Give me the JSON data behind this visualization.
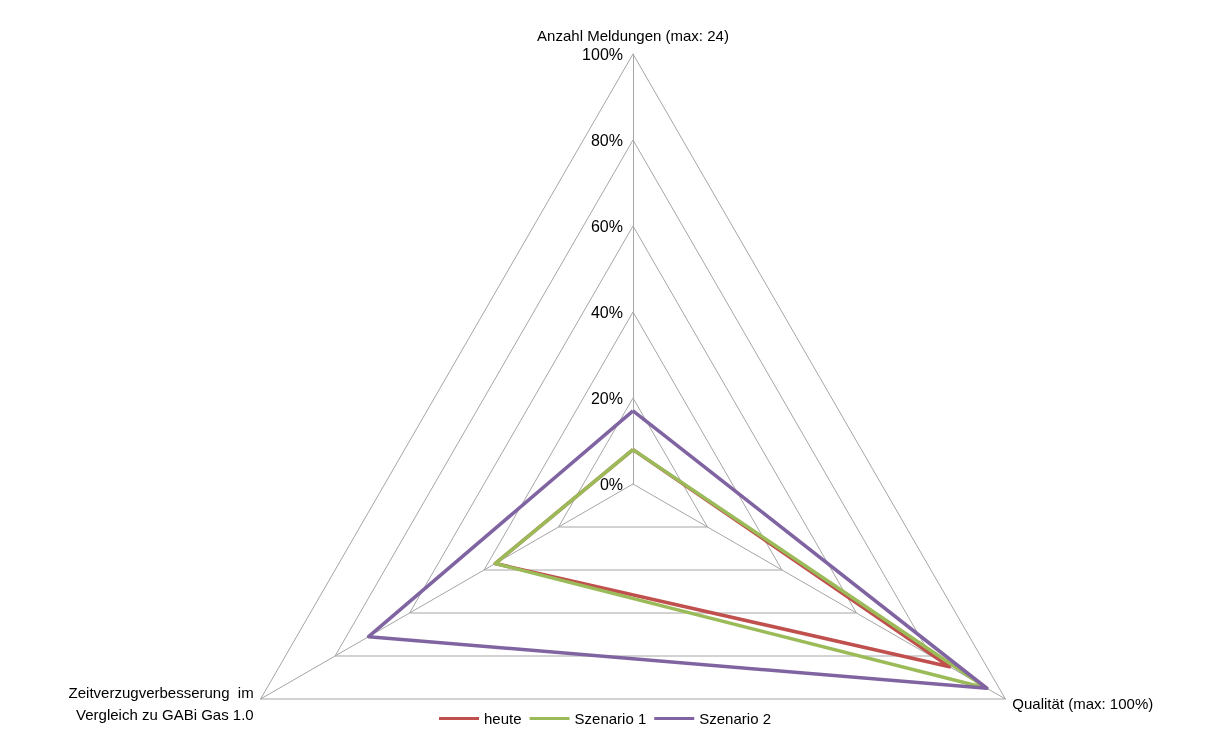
{
  "chart_data": {
    "type": "radar",
    "categories": [
      "Anzahl Meldungen (max: 24)",
      "Qualität (max: 100%)",
      "Zeitverzugverbesserung  im\nVergleich zu GABi Gas 1.0"
    ],
    "series": [
      {
        "name": "heute",
        "color": "#c0504d",
        "values": [
          8,
          85,
          37
        ]
      },
      {
        "name": "Szenario 1",
        "color": "#9bbb59",
        "values": [
          8,
          95,
          37
        ]
      },
      {
        "name": "Szenario 2",
        "color": "#8064a2",
        "values": [
          17,
          95,
          71
        ]
      }
    ],
    "ylim": [
      0,
      100
    ],
    "yticks": [
      {
        "value": 0,
        "label": "0%"
      },
      {
        "value": 20,
        "label": "20%"
      },
      {
        "value": 40,
        "label": "40%"
      },
      {
        "value": 60,
        "label": "60%"
      },
      {
        "value": 80,
        "label": "80%"
      },
      {
        "value": 100,
        "label": "100%"
      }
    ],
    "grid": true,
    "legend": "bottom",
    "marker": "none"
  }
}
